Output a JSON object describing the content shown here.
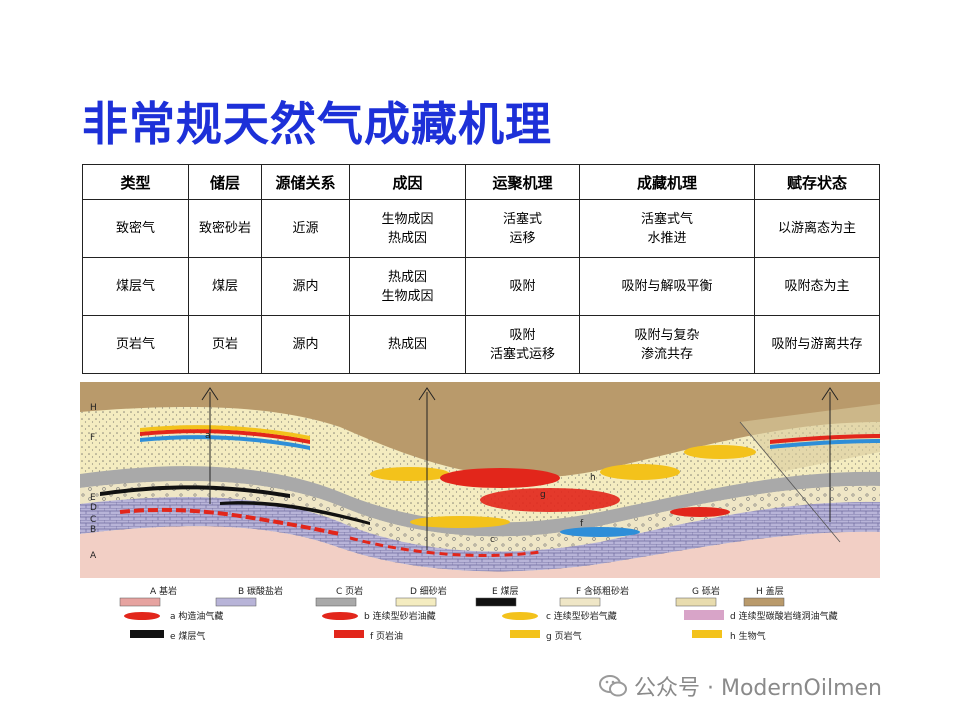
{
  "title": "非常规天然气成藏机理",
  "table": {
    "headers": [
      "类型",
      "储层",
      "源储关系",
      "成因",
      "运聚机理",
      "成藏机理",
      "赋存状态"
    ],
    "rows": [
      [
        [
          "致密气"
        ],
        [
          "致密砂岩"
        ],
        [
          "近源"
        ],
        [
          "生物成因",
          "热成因"
        ],
        [
          "活塞式",
          "运移"
        ],
        [
          "活塞式气",
          "水推进"
        ],
        [
          "以游离态为主"
        ]
      ],
      [
        [
          "煤层气"
        ],
        [
          "煤层"
        ],
        [
          "源内"
        ],
        [
          "热成因",
          "生物成因"
        ],
        [
          "吸附"
        ],
        [
          "吸附与解吸平衡"
        ],
        [
          "吸附态为主"
        ]
      ],
      [
        [
          "页岩气"
        ],
        [
          "页岩"
        ],
        [
          "源内"
        ],
        [
          "热成因"
        ],
        [
          "吸附",
          "活塞式运移"
        ],
        [
          "吸附与复杂",
          "渗流共存"
        ],
        [
          "吸附与游离共存"
        ]
      ]
    ]
  },
  "cross_section": {
    "layer_letters": [
      "H",
      "F",
      "E",
      "D",
      "C",
      "B",
      "A"
    ],
    "accumulation_letters": [
      "a",
      "b",
      "c",
      "d",
      "e",
      "f",
      "g",
      "h"
    ]
  },
  "legend": {
    "row1": [
      "A 基岩",
      "B 碳酸盐岩",
      "C 页岩",
      "D 细砂岩",
      "E 煤层",
      "F 含砾粗砂岩",
      "G 砾岩",
      "H 盖层"
    ],
    "row2": [
      "a 构造油气藏",
      "b 连续型砂岩油藏",
      "c 连续型砂岩气藏",
      "d 连续型碳酸岩缝洞油气藏"
    ],
    "row3": [
      "e 煤层气",
      "f 页岩油",
      "g 页岩气",
      "h 生物气"
    ]
  },
  "watermark": {
    "text": "公众号 · ModernOilmen",
    "icon": "wechat-icon"
  },
  "colors": {
    "title": "#1d30d8",
    "caprock": "#b99a6b",
    "sandstone": "#f4ecc0",
    "shale": "#a9a9a9",
    "carbonate": "#b8b4d8",
    "basement": "#f2cfc5",
    "oil": "#e2261b",
    "gas": "#f3c21b",
    "water": "#2e8ed8"
  }
}
